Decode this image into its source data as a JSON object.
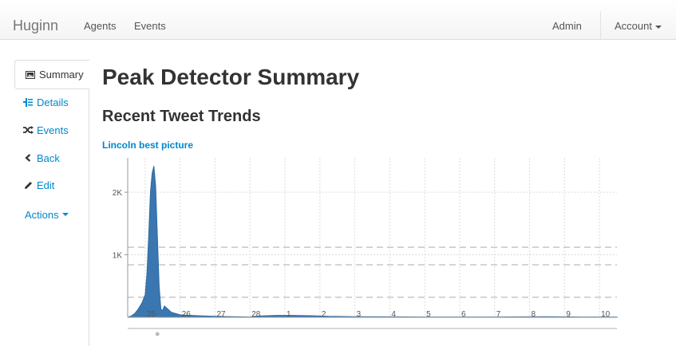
{
  "navbar": {
    "brand": "Huginn",
    "links": [
      "Agents",
      "Events"
    ],
    "admin": "Admin",
    "account": "Account"
  },
  "sidebar": {
    "items": [
      {
        "label": "Summary",
        "icon": "picture-icon"
      },
      {
        "label": "Details",
        "icon": "indent-icon"
      },
      {
        "label": "Events",
        "icon": "random-icon"
      },
      {
        "label": "Back",
        "icon": "chevron-left-icon"
      },
      {
        "label": "Edit",
        "icon": "pencil-icon"
      }
    ],
    "actions": "Actions"
  },
  "page": {
    "title": "Peak Detector Summary",
    "section": "Recent Tweet Trends",
    "chart_link": "Lincoln best picture"
  },
  "chart_data": {
    "type": "area",
    "title": "Lincoln best picture",
    "y_ticks": [
      {
        "label": "1K",
        "value": 1000
      },
      {
        "label": "2K",
        "value": 2000
      }
    ],
    "ylim": [
      0,
      2550
    ],
    "x_ticks": [
      "25",
      "26",
      "27",
      "28",
      "1",
      "2",
      "3",
      "4",
      "5",
      "6",
      "7",
      "8",
      "9",
      "10"
    ],
    "x_tick_values": [
      1,
      3,
      5,
      7,
      9,
      11,
      13,
      15,
      17,
      19,
      21,
      23,
      25,
      27
    ],
    "xlim": [
      0,
      28
    ],
    "x": [
      0,
      0.2,
      0.4,
      0.6,
      0.8,
      1.0,
      1.1,
      1.2,
      1.3,
      1.4,
      1.5,
      1.6,
      1.7,
      1.8,
      1.9,
      2.0,
      2.1,
      2.3,
      2.5,
      3.0,
      4.0,
      5.0,
      6.0,
      7.0,
      7.5,
      8.5,
      9.5,
      10.5,
      11.5,
      13.0,
      15.0,
      17.0,
      21.0,
      24.0,
      26.0,
      28.0
    ],
    "y": [
      0,
      20,
      60,
      130,
      220,
      360,
      700,
      1300,
      2000,
      2300,
      2420,
      2100,
      1300,
      500,
      130,
      110,
      180,
      130,
      80,
      40,
      25,
      15,
      10,
      5,
      20,
      30,
      30,
      25,
      15,
      10,
      8,
      5,
      5,
      10,
      5,
      5
    ],
    "threshold_lines": [
      320,
      840,
      1120
    ],
    "color": "#3a77b0",
    "grid": true,
    "legend": "none"
  }
}
